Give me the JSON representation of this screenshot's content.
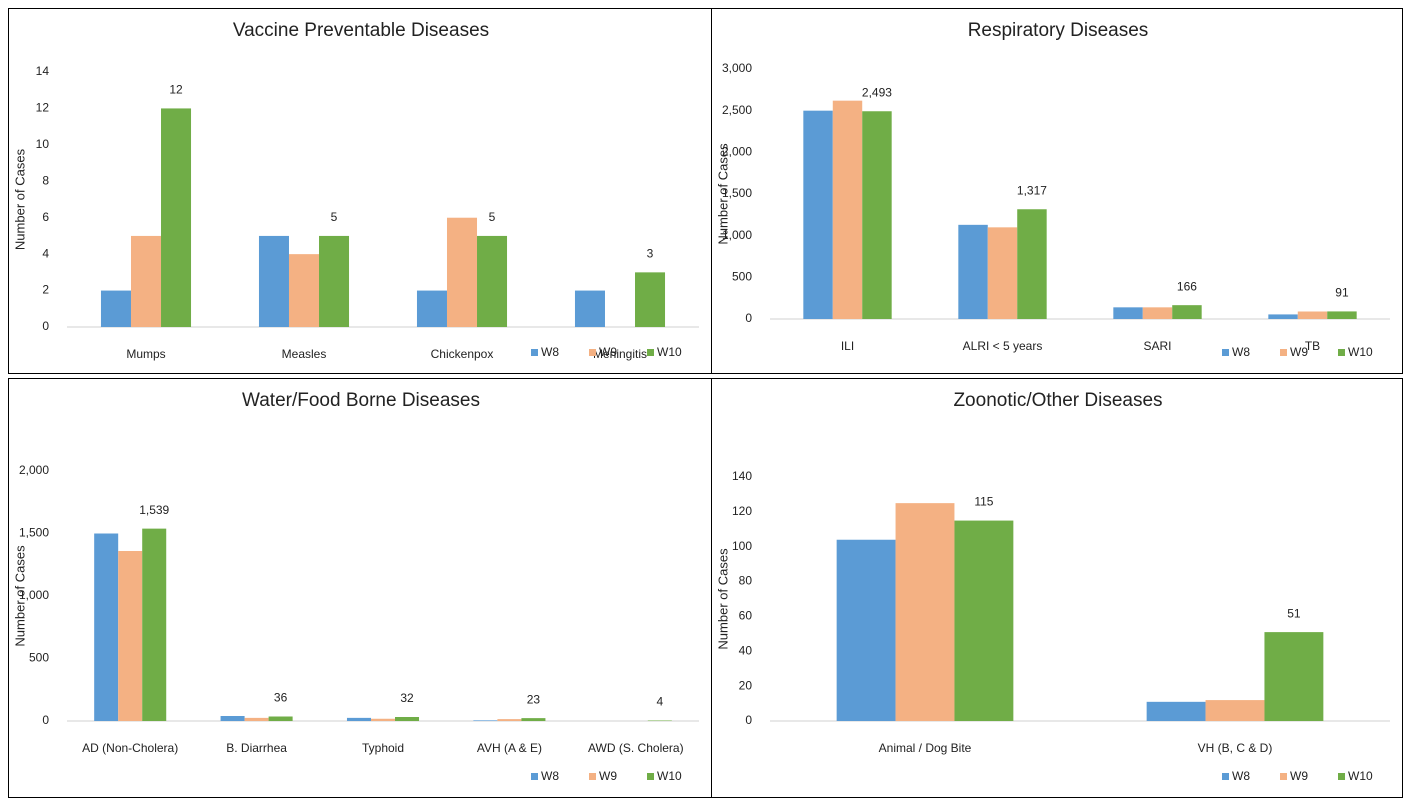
{
  "chart_data": [
    {
      "type": "bar",
      "title": "Vaccine Preventable Diseases",
      "y_label": "Number of Cases",
      "categories": [
        "Mumps",
        "Measles",
        "Chickenpox",
        "Meningitis"
      ],
      "series": [
        {
          "name": "W8",
          "color": "#5b9bd5",
          "values": [
            2,
            5,
            2,
            2
          ]
        },
        {
          "name": "W9",
          "color": "#f4b183",
          "values": [
            5,
            4,
            6,
            0
          ]
        },
        {
          "name": "W10",
          "color": "#70ad47",
          "values": [
            12,
            5,
            5,
            3
          ],
          "data_labels": true
        }
      ],
      "ylim": [
        0,
        14
      ],
      "yticks": [
        0,
        2,
        4,
        6,
        8,
        10,
        12,
        14
      ],
      "legend": "bottom-right"
    },
    {
      "type": "bar",
      "title": "Respiratory Diseases",
      "y_label": "Number of Cases",
      "categories": [
        "ILI",
        "ALRI < 5 years",
        "SARI",
        "TB"
      ],
      "series": [
        {
          "name": "W8",
          "color": "#5b9bd5",
          "values": [
            2500,
            1130,
            140,
            55
          ]
        },
        {
          "name": "W9",
          "color": "#f4b183",
          "values": [
            2620,
            1100,
            140,
            90
          ]
        },
        {
          "name": "W10",
          "color": "#70ad47",
          "values": [
            2493,
            1317,
            166,
            91
          ],
          "value_labels": [
            "2,493",
            "1,317",
            "166",
            "91"
          ],
          "data_labels": true
        }
      ],
      "ylim": [
        0,
        3000
      ],
      "yticks": [
        0,
        500,
        {
          "value": 1000,
          "label": "1,000"
        },
        {
          "value": 1500,
          "label": "1,500"
        },
        {
          "value": 2000,
          "label": "2,000"
        },
        {
          "value": 2500,
          "label": "2,500"
        },
        {
          "value": 3000,
          "label": "3,000"
        }
      ],
      "legend": "bottom-right"
    },
    {
      "type": "bar",
      "title": "Water/Food Borne Diseases",
      "y_label": "Number of Cases",
      "categories": [
        "AD (Non-Cholera)",
        "B. Diarrhea",
        "Typhoid",
        "AVH (A & E)",
        "AWD (S. Cholera)"
      ],
      "series": [
        {
          "name": "W8",
          "color": "#5b9bd5",
          "values": [
            1500,
            40,
            25,
            5,
            0
          ]
        },
        {
          "name": "W9",
          "color": "#f4b183",
          "values": [
            1360,
            25,
            18,
            15,
            0
          ]
        },
        {
          "name": "W10",
          "color": "#70ad47",
          "values": [
            1539,
            36,
            32,
            23,
            4
          ],
          "value_labels": [
            "1,539",
            "36",
            "32",
            "23",
            "4"
          ],
          "data_labels": true
        }
      ],
      "ylim": [
        0,
        2000
      ],
      "yticks": [
        0,
        500,
        {
          "value": 1000,
          "label": "1,000"
        },
        {
          "value": 1500,
          "label": "1,500"
        },
        {
          "value": 2000,
          "label": "2,000"
        }
      ],
      "legend": "bottom-right"
    },
    {
      "type": "bar",
      "title": "Zoonotic/Other Diseases",
      "y_label": "Number of Cases",
      "categories": [
        "Animal / Dog Bite",
        "VH (B, C & D)"
      ],
      "series": [
        {
          "name": "W8",
          "color": "#5b9bd5",
          "values": [
            104,
            11
          ]
        },
        {
          "name": "W9",
          "color": "#f4b183",
          "values": [
            125,
            12
          ]
        },
        {
          "name": "W10",
          "color": "#70ad47",
          "values": [
            115,
            51
          ],
          "data_labels": true
        }
      ],
      "ylim": [
        0,
        140
      ],
      "yticks": [
        0,
        20,
        40,
        60,
        80,
        100,
        120,
        140
      ],
      "legend": "bottom-right"
    }
  ]
}
